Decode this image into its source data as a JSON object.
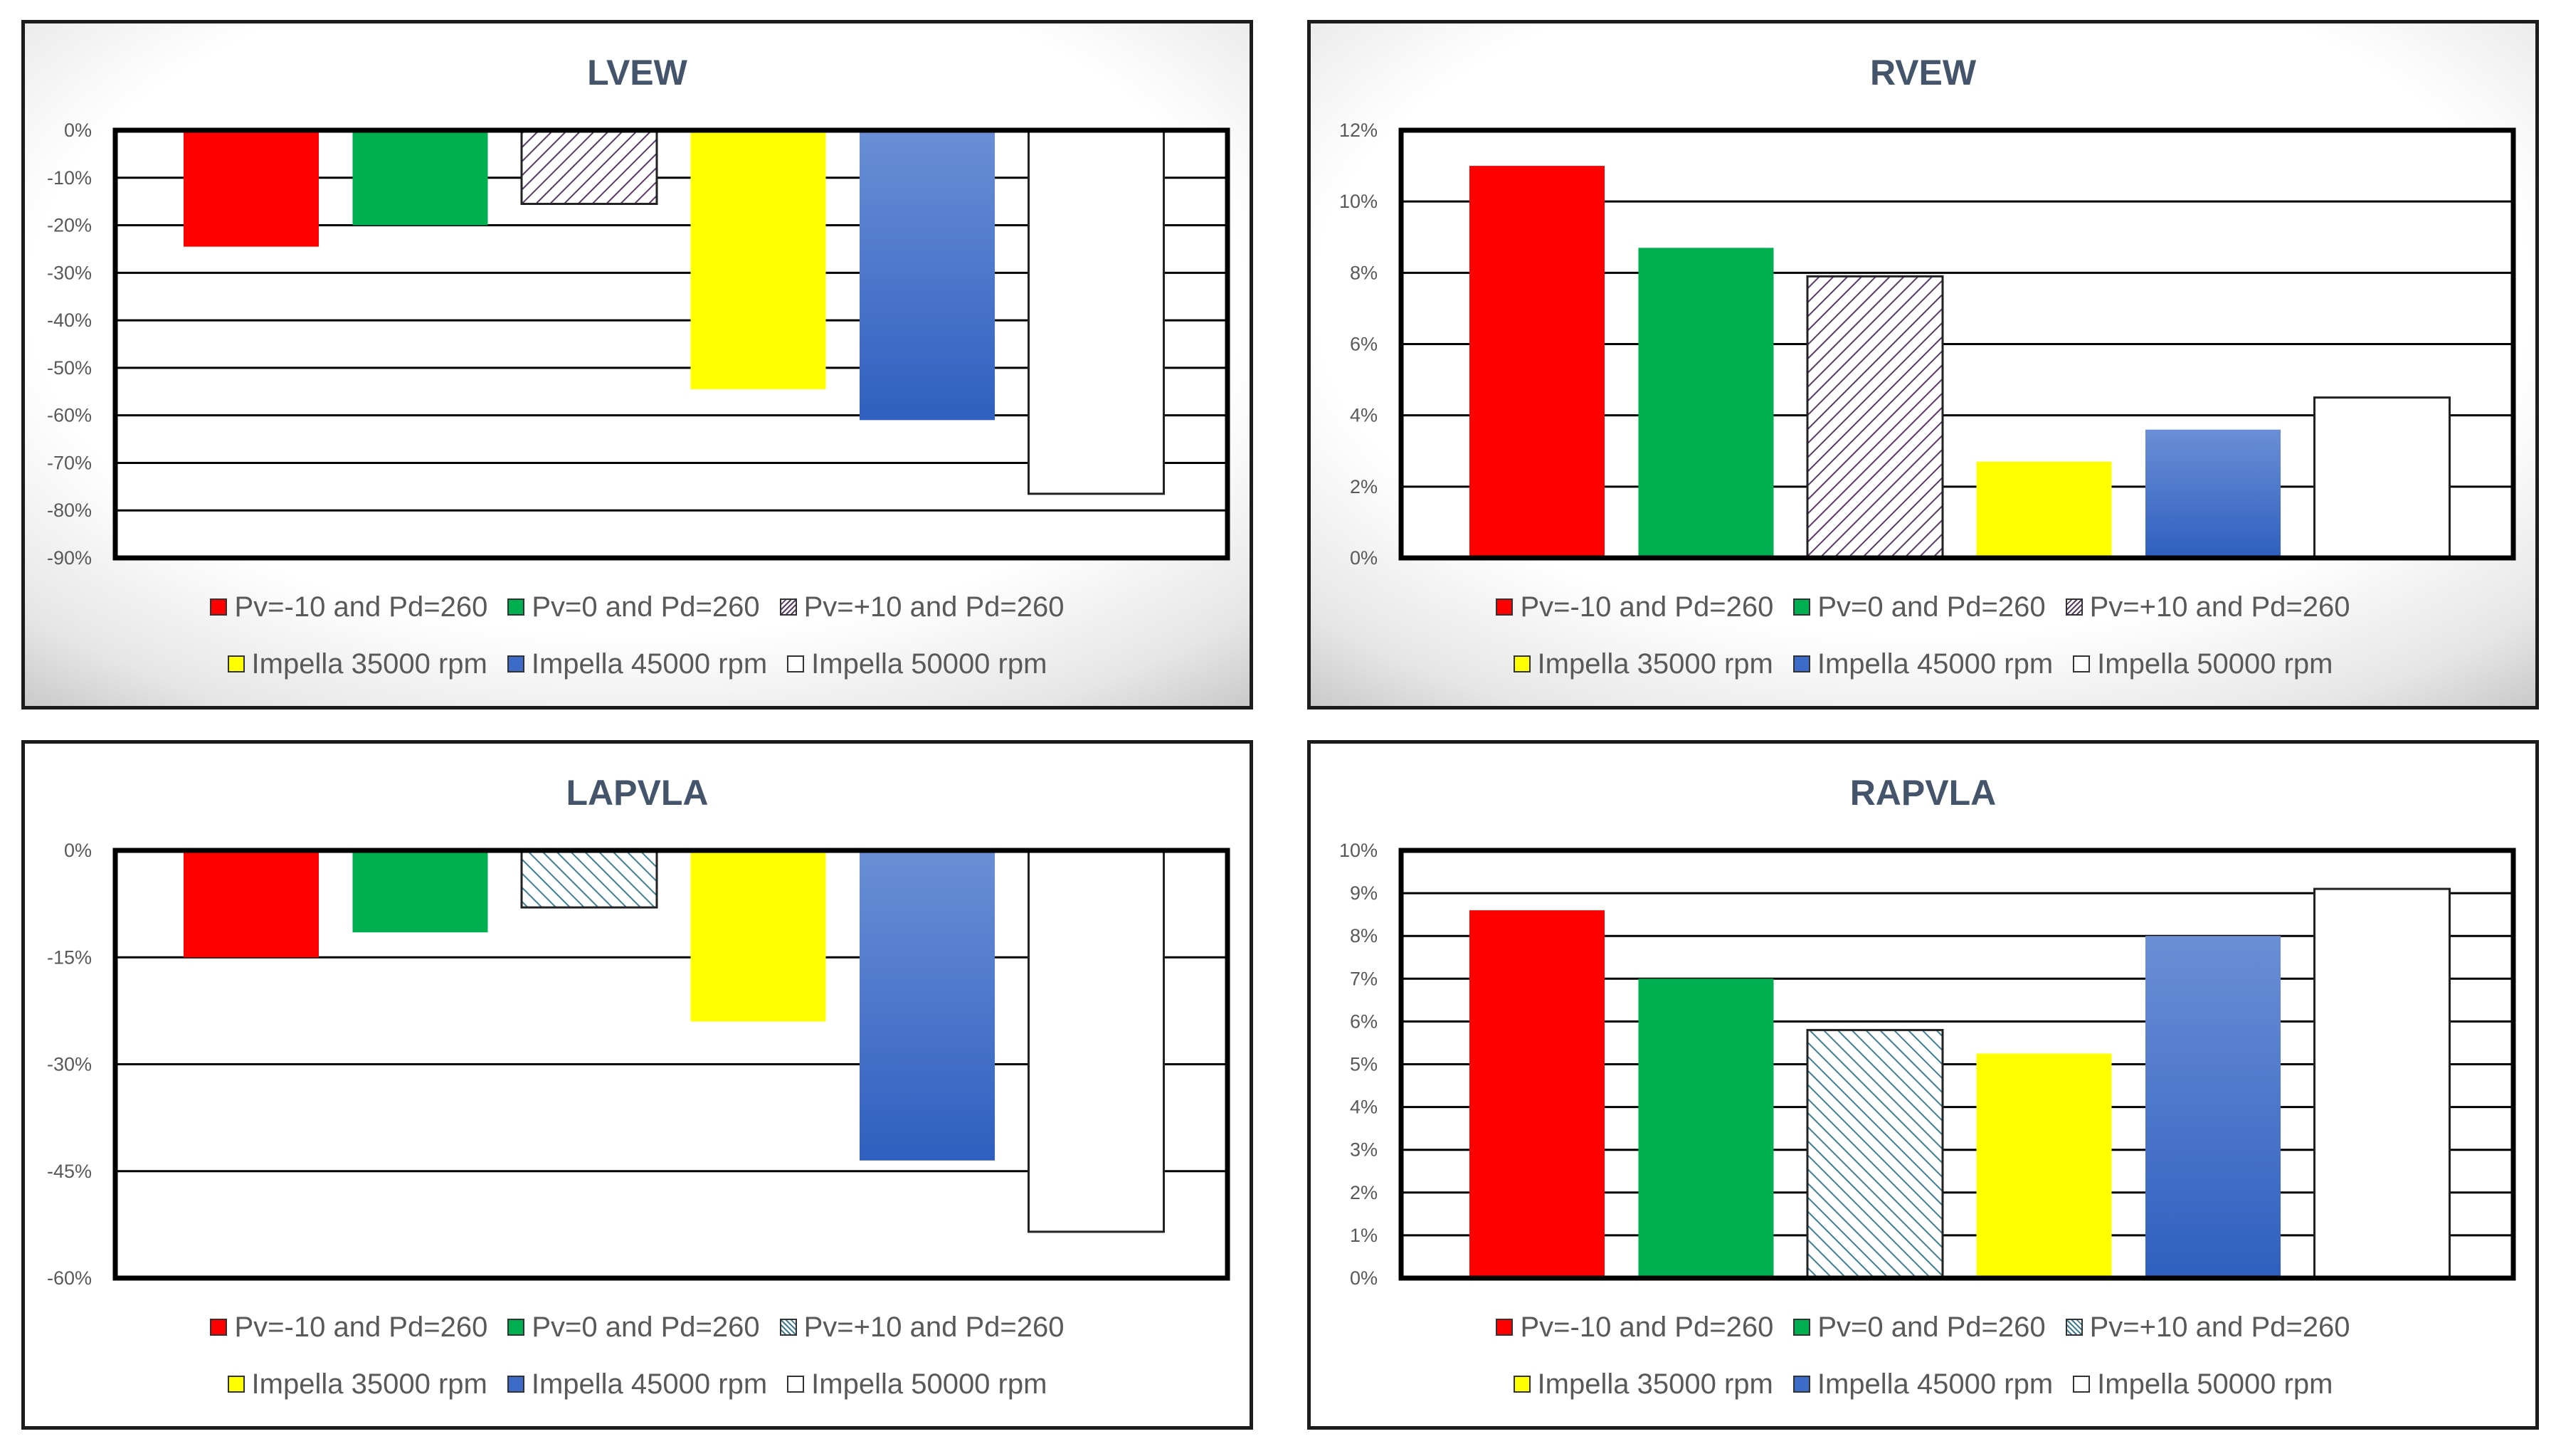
{
  "colors": {
    "series": [
      "#ff0000",
      "#00b050",
      "#d9d5dd",
      "#ffff00",
      "#3c6cc8",
      "#ffffff"
    ],
    "hatch_up": "#5a3a66",
    "hatch_down": "#3f7f95",
    "title": "#44546a",
    "tick": "#595959"
  },
  "chart_data": [
    {
      "type": "bar",
      "title": "LVEW",
      "categories": [
        "Pv=-10 and Pd=260",
        "Pv=0 and Pd=260",
        "Pv=+10 and Pd=260",
        "Impella 35000 rpm",
        "Impella 45000 rpm",
        "Impella 50000 rpm"
      ],
      "values": [
        -24.5,
        -20,
        -15.5,
        -54.5,
        -61,
        -76.5
      ],
      "ylim": [
        -90,
        0
      ],
      "yticks": [
        0,
        -10,
        -20,
        -30,
        -40,
        -50,
        -60,
        -70,
        -80,
        -90
      ],
      "ytick_labels": [
        "0%",
        "-10%",
        "-20%",
        "-30%",
        "-40%",
        "-50%",
        "-60%",
        "-70%",
        "-80%",
        "-90%"
      ],
      "grid": true,
      "legend": "bottom"
    },
    {
      "type": "bar",
      "title": "RVEW",
      "categories": [
        "Pv=-10 and Pd=260",
        "Pv=0 and Pd=260",
        "Pv=+10 and Pd=260",
        "Impella 35000 rpm",
        "Impella 45000 rpm",
        "Impella 50000 rpm"
      ],
      "values": [
        11,
        8.7,
        7.9,
        2.7,
        3.6,
        4.5
      ],
      "ylim": [
        0,
        12
      ],
      "yticks": [
        0,
        2,
        4,
        6,
        8,
        10,
        12
      ],
      "ytick_labels": [
        "0%",
        "2%",
        "4%",
        "6%",
        "8%",
        "10%",
        "12%"
      ],
      "grid": true,
      "legend": "bottom"
    },
    {
      "type": "bar",
      "title": "LAPVLA",
      "categories": [
        "Pv=-10 and Pd=260",
        "Pv=0 and Pd=260",
        "Pv=+10 and Pd=260",
        "Impella 35000 rpm",
        "Impella 45000 rpm",
        "Impella 50000 rpm"
      ],
      "values": [
        -15,
        -11.5,
        -8,
        -24,
        -43.5,
        -53.5
      ],
      "ylim": [
        -60,
        0
      ],
      "yticks": [
        0,
        -15,
        -30,
        -45,
        -60
      ],
      "ytick_labels": [
        "0%",
        "-15%",
        "-30%",
        "-45%",
        "-60%"
      ],
      "grid": true,
      "legend": "bottom"
    },
    {
      "type": "bar",
      "title": "RAPVLA",
      "categories": [
        "Pv=-10 and Pd=260",
        "Pv=0 and Pd=260",
        "Pv=+10 and Pd=260",
        "Impella 35000 rpm",
        "Impella 45000 rpm",
        "Impella 50000 rpm"
      ],
      "values": [
        8.6,
        7,
        5.8,
        5.25,
        8,
        9.1
      ],
      "ylim": [
        0,
        10
      ],
      "yticks": [
        0,
        1,
        2,
        3,
        4,
        5,
        6,
        7,
        8,
        9,
        10
      ],
      "ytick_labels": [
        "0%",
        "1%",
        "2%",
        "3%",
        "4%",
        "5%",
        "6%",
        "7%",
        "8%",
        "9%",
        "10%"
      ],
      "grid": true,
      "legend": "bottom"
    }
  ]
}
